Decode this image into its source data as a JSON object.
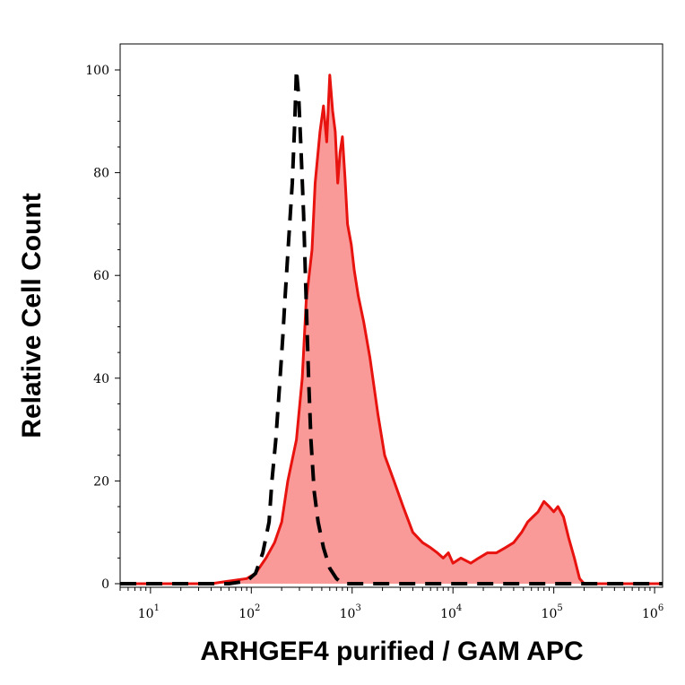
{
  "chart_data": {
    "type": "area",
    "xlabel": "ARHGEF4 purified / GAM APC",
    "ylabel": "Relative Cell Count",
    "x_scale": "log",
    "xlim": [
      5,
      1200000
    ],
    "ylim": [
      0,
      100
    ],
    "x_ticks": [
      {
        "base": "10",
        "exp": "1",
        "value": 10
      },
      {
        "base": "10",
        "exp": "2",
        "value": 100
      },
      {
        "base": "10",
        "exp": "3",
        "value": 1000
      },
      {
        "base": "10",
        "exp": "4",
        "value": 10000
      },
      {
        "base": "10",
        "exp": "5",
        "value": 100000
      },
      {
        "base": "10",
        "exp": "6",
        "value": 1000000
      }
    ],
    "y_ticks": [
      "0",
      "20",
      "40",
      "60",
      "80",
      "100"
    ],
    "y_tick_values": [
      0,
      20,
      40,
      60,
      80,
      100
    ],
    "grid": false,
    "series": [
      {
        "style": "filled red area with solid red outline",
        "color": "#e8120e",
        "fill": "#f99a98",
        "x": [
          5,
          40,
          60,
          90,
          110,
          140,
          170,
          200,
          230,
          280,
          320,
          350,
          400,
          430,
          480,
          520,
          560,
          600,
          640,
          680,
          720,
          760,
          800,
          850,
          900,
          980,
          1050,
          1150,
          1300,
          1500,
          1800,
          2100,
          2600,
          3200,
          4000,
          5000,
          6000,
          7000,
          8000,
          9000,
          10000,
          12000,
          15000,
          18000,
          22000,
          27000,
          33000,
          40000,
          48000,
          55000,
          62000,
          70000,
          80000,
          90000,
          100000,
          110000,
          125000,
          140000,
          160000,
          180000,
          200000,
          250000,
          400000,
          1200000
        ],
        "y": [
          0,
          0,
          0.5,
          1,
          2,
          5,
          8,
          12,
          20,
          28,
          40,
          55,
          65,
          78,
          88,
          93,
          86,
          99,
          92,
          88,
          78,
          84,
          87,
          79,
          70,
          66,
          61,
          56,
          51,
          44,
          33,
          25,
          20,
          15,
          10,
          8,
          7,
          6,
          5,
          6,
          4,
          5,
          4,
          5,
          6,
          6,
          7,
          8,
          10,
          12,
          13,
          14,
          16,
          15,
          14,
          15,
          13,
          9,
          5,
          1,
          0,
          0,
          0,
          0
        ]
      },
      {
        "style": "dashed black line",
        "color": "#000000",
        "x": [
          5,
          60,
          90,
          110,
          130,
          150,
          160,
          175,
          190,
          205,
          215,
          235,
          255,
          270,
          280,
          295,
          310,
          330,
          350,
          370,
          390,
          420,
          460,
          520,
          600,
          700,
          800,
          1000,
          1200000
        ],
        "y": [
          0,
          0,
          0.5,
          2,
          6,
          12,
          20,
          28,
          38,
          48,
          55,
          67,
          78,
          90,
          100,
          95,
          85,
          72,
          55,
          40,
          28,
          18,
          12,
          7,
          3,
          1,
          0,
          0,
          0
        ]
      }
    ]
  }
}
